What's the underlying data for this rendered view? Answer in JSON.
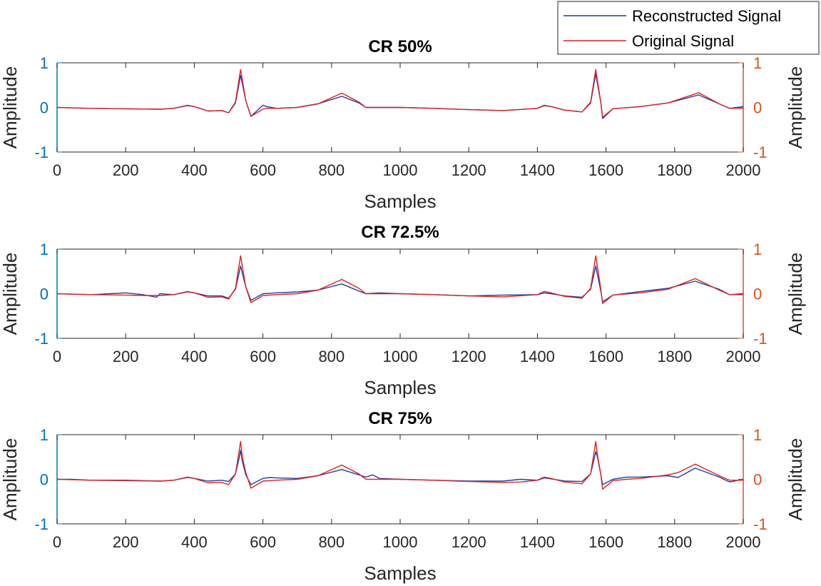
{
  "colors": {
    "left_axis": "#0072bd",
    "right_axis": "#d95319",
    "reconstructed": "#1f3f9f",
    "original": "#e02020",
    "frame": "#262626"
  },
  "legend": {
    "reconstructed_label": "Reconstructed Signal",
    "original_label": "Original Signal"
  },
  "chart_data": [
    {
      "type": "line",
      "title": "CR 50%",
      "xlabel": "Samples",
      "ylabel_left": "Amplitude",
      "ylabel_right": "Amplitude",
      "xlim": [
        0,
        2000
      ],
      "ylim": [
        -1,
        1
      ],
      "x_ticks": [
        "0",
        "200",
        "400",
        "600",
        "800",
        "1000",
        "1200",
        "1400",
        "1600",
        "1800",
        "2000"
      ],
      "y_ticks": [
        "-1",
        "0",
        "1"
      ],
      "series": [
        {
          "name": "Reconstructed Signal",
          "x": [
            0,
            40,
            100,
            200,
            300,
            340,
            380,
            400,
            440,
            480,
            500,
            520,
            535,
            550,
            565,
            600,
            610,
            640,
            700,
            760,
            830,
            880,
            900,
            940,
            1000,
            1100,
            1200,
            1300,
            1400,
            1420,
            1440,
            1480,
            1530,
            1555,
            1570,
            1585,
            1590,
            1620,
            1700,
            1780,
            1870,
            1930,
            1960,
            2000
          ],
          "values": [
            0,
            -0.01,
            -0.02,
            -0.03,
            -0.04,
            -0.02,
            0.04,
            0.02,
            -0.08,
            -0.07,
            -0.12,
            0.1,
            0.72,
            0.15,
            -0.2,
            0.05,
            0.02,
            -0.02,
            0,
            0.08,
            0.25,
            0.1,
            0,
            0,
            0,
            -0.02,
            -0.05,
            -0.07,
            -0.02,
            0.04,
            0.02,
            -0.06,
            -0.1,
            0.1,
            0.75,
            0.1,
            -0.25,
            -0.03,
            0.02,
            0.1,
            0.28,
            0.08,
            -0.02,
            0.02
          ]
        },
        {
          "name": "Original Signal",
          "x": [
            0,
            40,
            100,
            200,
            300,
            340,
            380,
            400,
            440,
            480,
            500,
            520,
            535,
            550,
            565,
            600,
            610,
            640,
            700,
            760,
            830,
            880,
            900,
            940,
            1000,
            1100,
            1200,
            1300,
            1400,
            1420,
            1440,
            1480,
            1530,
            1555,
            1570,
            1585,
            1590,
            1620,
            1700,
            1780,
            1870,
            1930,
            1960,
            2000
          ],
          "values": [
            0,
            -0.01,
            -0.02,
            -0.03,
            -0.04,
            -0.02,
            0.05,
            0.02,
            -0.08,
            -0.07,
            -0.12,
            0.12,
            0.85,
            0.15,
            -0.2,
            -0.04,
            -0.02,
            -0.02,
            0,
            0.08,
            0.32,
            0.12,
            0,
            0,
            0,
            -0.02,
            -0.05,
            -0.07,
            -0.02,
            0.05,
            0.02,
            -0.06,
            -0.1,
            0.12,
            0.85,
            0.1,
            -0.22,
            -0.03,
            0.02,
            0.1,
            0.33,
            0.08,
            -0.02,
            -0.02
          ]
        }
      ]
    },
    {
      "type": "line",
      "title": "CR 72.5%",
      "xlabel": "Samples",
      "ylabel_left": "Amplitude",
      "ylabel_right": "Amplitude",
      "xlim": [
        0,
        2000
      ],
      "ylim": [
        -1,
        1
      ],
      "x_ticks": [
        "0",
        "200",
        "400",
        "600",
        "800",
        "1000",
        "1200",
        "1400",
        "1600",
        "1800",
        "2000"
      ],
      "y_ticks": [
        "-1",
        "0",
        "1"
      ],
      "series": [
        {
          "name": "Reconstructed Signal",
          "x": [
            0,
            40,
            100,
            200,
            250,
            290,
            300,
            340,
            380,
            400,
            440,
            480,
            500,
            520,
            535,
            550,
            565,
            600,
            640,
            700,
            760,
            830,
            880,
            900,
            940,
            1000,
            1100,
            1200,
            1300,
            1400,
            1420,
            1440,
            1480,
            1530,
            1555,
            1570,
            1585,
            1590,
            1620,
            1700,
            1780,
            1860,
            1930,
            1960,
            2000
          ],
          "values": [
            0,
            -0.01,
            -0.02,
            0.02,
            -0.02,
            -0.08,
            0,
            -0.02,
            0.04,
            0.02,
            -0.05,
            -0.05,
            -0.1,
            0.1,
            0.62,
            0.15,
            -0.15,
            0,
            0.02,
            0.04,
            0.08,
            0.22,
            0.06,
            0,
            0.02,
            0,
            -0.02,
            -0.05,
            -0.03,
            -0.02,
            0.02,
            0,
            -0.05,
            -0.08,
            0.1,
            0.62,
            0.05,
            -0.18,
            -0.03,
            0.05,
            0.12,
            0.28,
            0.1,
            -0.02,
            0
          ]
        },
        {
          "name": "Original Signal",
          "x": [
            0,
            40,
            100,
            200,
            250,
            290,
            300,
            340,
            380,
            400,
            440,
            480,
            500,
            520,
            535,
            550,
            565,
            600,
            640,
            700,
            760,
            830,
            880,
            900,
            940,
            1000,
            1100,
            1200,
            1300,
            1400,
            1420,
            1440,
            1480,
            1530,
            1555,
            1570,
            1585,
            1590,
            1620,
            1700,
            1780,
            1860,
            1930,
            1960,
            2000
          ],
          "values": [
            0,
            -0.01,
            -0.02,
            -0.03,
            -0.04,
            -0.04,
            -0.04,
            -0.02,
            0.05,
            0.02,
            -0.08,
            -0.07,
            -0.12,
            0.12,
            0.85,
            0.15,
            -0.2,
            -0.04,
            -0.02,
            0,
            0.08,
            0.32,
            0.12,
            0,
            0,
            0,
            -0.02,
            -0.05,
            -0.07,
            -0.02,
            0.05,
            0.02,
            -0.06,
            -0.1,
            0.12,
            0.85,
            0.1,
            -0.22,
            -0.03,
            0.02,
            0.1,
            0.34,
            0.08,
            -0.02,
            -0.02
          ]
        }
      ]
    },
    {
      "type": "line",
      "title": "CR 75%",
      "xlabel": "Samples",
      "ylabel_left": "Amplitude",
      "ylabel_right": "Amplitude",
      "xlim": [
        0,
        2000
      ],
      "ylim": [
        -1,
        1
      ],
      "x_ticks": [
        "0",
        "200",
        "400",
        "600",
        "800",
        "1000",
        "1200",
        "1400",
        "1600",
        "1800",
        "2000"
      ],
      "y_ticks": [
        "-1",
        "0",
        "1"
      ],
      "series": [
        {
          "name": "Reconstructed Signal",
          "x": [
            0,
            40,
            100,
            200,
            300,
            340,
            380,
            400,
            440,
            480,
            500,
            520,
            530,
            535,
            540,
            550,
            565,
            600,
            620,
            640,
            700,
            760,
            830,
            880,
            900,
            920,
            940,
            1000,
            1100,
            1200,
            1300,
            1350,
            1400,
            1420,
            1440,
            1480,
            1530,
            1555,
            1565,
            1570,
            1575,
            1585,
            1590,
            1620,
            1660,
            1700,
            1780,
            1810,
            1860,
            1930,
            1960,
            2000
          ],
          "values": [
            0,
            0,
            -0.02,
            -0.02,
            -0.04,
            -0.02,
            0.04,
            0.02,
            -0.04,
            -0.02,
            -0.05,
            0.12,
            0.45,
            0.65,
            0.4,
            0.1,
            -0.12,
            0.02,
            0.04,
            0.03,
            0.02,
            0.08,
            0.22,
            0.1,
            0.05,
            0.1,
            0.02,
            0,
            -0.02,
            -0.04,
            -0.04,
            0,
            -0.02,
            0.03,
            0.01,
            -0.04,
            -0.05,
            0.12,
            0.45,
            0.62,
            0.5,
            0.1,
            -0.12,
            0,
            0.05,
            0.05,
            0.08,
            0.04,
            0.25,
            0.05,
            -0.06,
            0
          ]
        },
        {
          "name": "Original Signal",
          "x": [
            0,
            40,
            100,
            200,
            300,
            340,
            380,
            400,
            440,
            480,
            500,
            520,
            530,
            535,
            540,
            550,
            565,
            600,
            620,
            640,
            700,
            760,
            830,
            880,
            900,
            920,
            940,
            1000,
            1100,
            1200,
            1300,
            1350,
            1400,
            1420,
            1440,
            1480,
            1530,
            1555,
            1565,
            1570,
            1575,
            1585,
            1590,
            1620,
            1660,
            1700,
            1780,
            1810,
            1860,
            1930,
            1960,
            2000
          ],
          "values": [
            0,
            -0.01,
            -0.02,
            -0.03,
            -0.04,
            -0.02,
            0.05,
            0.02,
            -0.08,
            -0.07,
            -0.12,
            0.12,
            0.6,
            0.85,
            0.5,
            0.15,
            -0.2,
            -0.04,
            -0.03,
            -0.02,
            0,
            0.08,
            0.32,
            0.12,
            0,
            0,
            0,
            0,
            -0.02,
            -0.05,
            -0.07,
            -0.06,
            -0.02,
            0.05,
            0.02,
            -0.06,
            -0.1,
            0.12,
            0.6,
            0.85,
            0.55,
            0.1,
            -0.22,
            -0.03,
            0,
            0.02,
            0.1,
            0.15,
            0.34,
            0.08,
            -0.02,
            -0.02
          ]
        }
      ]
    }
  ]
}
